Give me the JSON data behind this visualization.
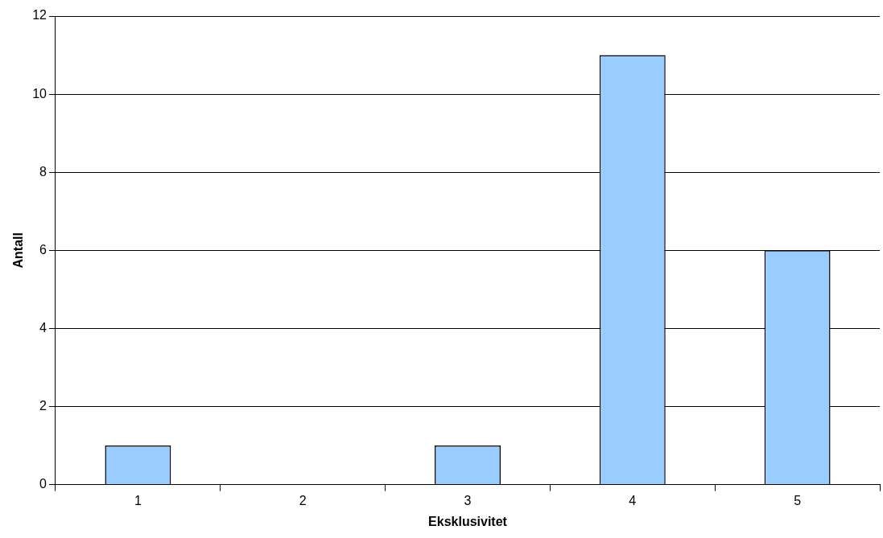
{
  "chart_data": {
    "type": "bar",
    "xlabel": "Eksklusivitet",
    "ylabel": "Antall",
    "categories": [
      "1",
      "2",
      "3",
      "4",
      "5"
    ],
    "values": [
      1,
      0,
      1,
      11,
      6
    ],
    "color": "#99ccff",
    "ylim": [
      0,
      12
    ],
    "yticks": [
      0,
      2,
      4,
      6,
      8,
      10,
      12
    ],
    "grid": "y"
  }
}
